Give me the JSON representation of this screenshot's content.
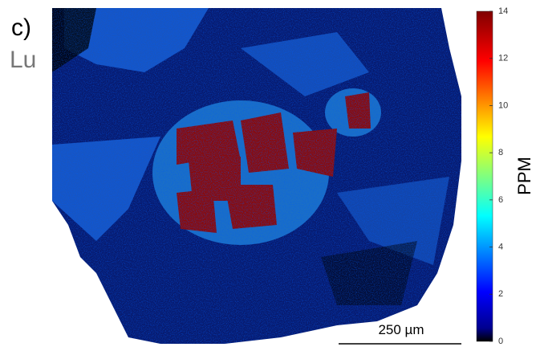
{
  "panel_label": "c)",
  "element": "Lu",
  "colorbar": {
    "label": "PPM",
    "lim": [
      0,
      14
    ],
    "ticks": [
      0,
      2,
      4,
      6,
      8,
      10,
      12,
      14
    ]
  },
  "scale_bar": "250 µm"
}
